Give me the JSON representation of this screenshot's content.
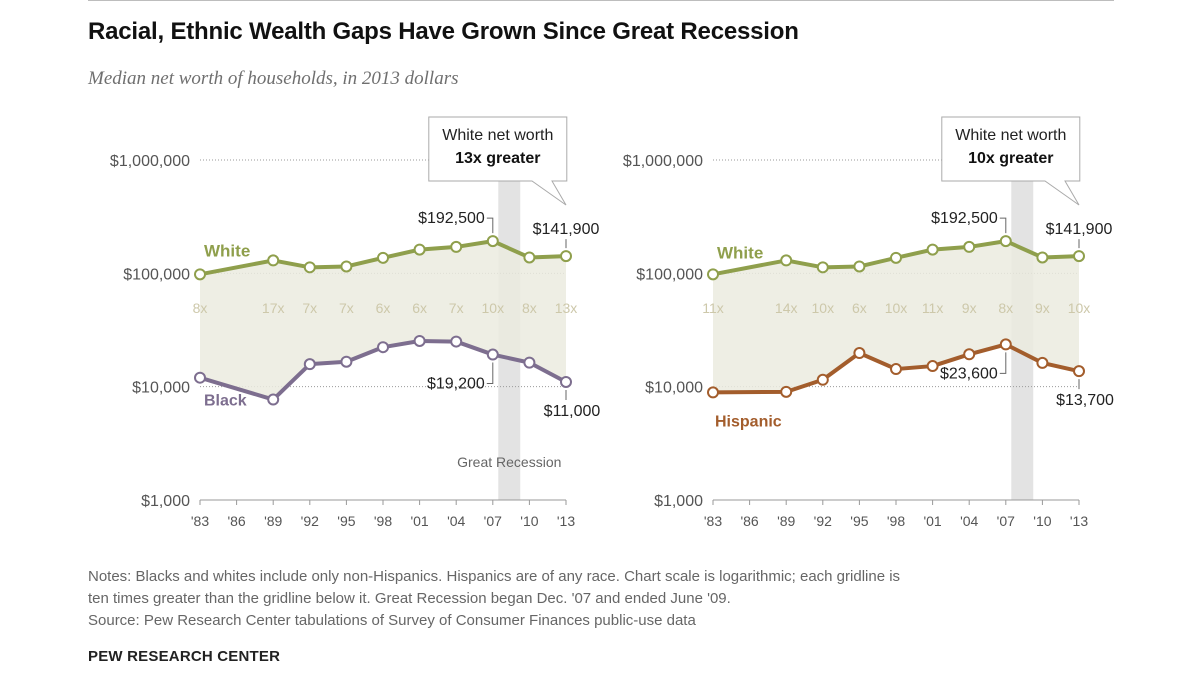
{
  "header": {
    "title": "Racial, Ethnic Wealth Gaps Have Grown Since Great Recession",
    "subtitle": "Median net worth of households, in 2013 dollars"
  },
  "colors": {
    "white_series": "#8f9f4c",
    "black_series": "#7d6e8f",
    "hispanic_series": "#a35d2c",
    "ratio_text": "#cdc8aa",
    "gap_fill": "#ebebdf",
    "recession_band": "#e3e3e3"
  },
  "chart_data": [
    {
      "type": "line",
      "scale": "log",
      "x": [
        "'83",
        "'86",
        "'89",
        "'92",
        "'95",
        "'98",
        "'01",
        "'04",
        "'07",
        "'10",
        "'13"
      ],
      "y_ticks": [
        "$1,000",
        "$10,000",
        "$100,000",
        "$1,000,000"
      ],
      "ylim": [
        1000,
        1000000
      ],
      "series": [
        {
          "name": "White",
          "x": [
            "'83",
            "'89",
            "'92",
            "'95",
            "'98",
            "'01",
            "'04",
            "'07",
            "'10",
            "'13"
          ],
          "values": [
            98000,
            130000,
            113000,
            115000,
            137000,
            162000,
            171000,
            192500,
            138000,
            141900
          ]
        },
        {
          "name": "Black",
          "x": [
            "'83",
            "'89",
            "'92",
            "'95",
            "'98",
            "'01",
            "'04",
            "'07",
            "'10",
            "'13"
          ],
          "values": [
            12000,
            7700,
            15800,
            16600,
            22300,
            25300,
            25000,
            19200,
            16300,
            11000
          ]
        }
      ],
      "ratios": [
        {
          "x": "'83",
          "label": "8x"
        },
        {
          "x": "'89",
          "label": "17x"
        },
        {
          "x": "'92",
          "label": "7x"
        },
        {
          "x": "'95",
          "label": "7x"
        },
        {
          "x": "'98",
          "label": "6x"
        },
        {
          "x": "'01",
          "label": "6x"
        },
        {
          "x": "'04",
          "label": "7x"
        },
        {
          "x": "'07",
          "label": "10x"
        },
        {
          "x": "'10",
          "label": "8x"
        },
        {
          "x": "'13",
          "label": "13x"
        }
      ],
      "annotations": {
        "white_2007": "$192,500",
        "white_2013": "$141,900",
        "minority_2007": "$19,200",
        "minority_2013": "$11,000",
        "callout_line1": "White net worth",
        "callout_line2": "13x greater",
        "recession_label": "Great Recession"
      }
    },
    {
      "type": "line",
      "scale": "log",
      "x": [
        "'83",
        "'86",
        "'89",
        "'92",
        "'95",
        "'98",
        "'01",
        "'04",
        "'07",
        "'10",
        "'13"
      ],
      "y_ticks": [
        "$1,000",
        "$10,000",
        "$100,000",
        "$1,000,000"
      ],
      "ylim": [
        1000,
        1000000
      ],
      "series": [
        {
          "name": "White",
          "x": [
            "'83",
            "'89",
            "'92",
            "'95",
            "'98",
            "'01",
            "'04",
            "'07",
            "'10",
            "'13"
          ],
          "values": [
            98000,
            130000,
            113000,
            115000,
            137000,
            162000,
            171000,
            192500,
            138000,
            141900
          ]
        },
        {
          "name": "Hispanic",
          "x": [
            "'83",
            "'89",
            "'92",
            "'95",
            "'98",
            "'01",
            "'04",
            "'07",
            "'10",
            "'13"
          ],
          "values": [
            8900,
            9000,
            11500,
            19800,
            14300,
            15200,
            19300,
            23600,
            16200,
            13700
          ]
        }
      ],
      "ratios": [
        {
          "x": "'83",
          "label": "11x"
        },
        {
          "x": "'89",
          "label": "14x"
        },
        {
          "x": "'92",
          "label": "10x"
        },
        {
          "x": "'95",
          "label": "6x"
        },
        {
          "x": "'98",
          "label": "10x"
        },
        {
          "x": "'01",
          "label": "11x"
        },
        {
          "x": "'04",
          "label": "9x"
        },
        {
          "x": "'07",
          "label": "8x"
        },
        {
          "x": "'10",
          "label": "9x"
        },
        {
          "x": "'13",
          "label": "10x"
        }
      ],
      "annotations": {
        "white_2007": "$192,500",
        "white_2013": "$141,900",
        "minority_2007": "$23,600",
        "minority_2013": "$13,700",
        "callout_line1": "White net worth",
        "callout_line2": "10x greater",
        "recession_label": ""
      }
    }
  ],
  "notes": {
    "line1": "Notes: Blacks and whites include only non-Hispanics. Hispanics are of any race. Chart scale is logarithmic; each gridline is",
    "line2": "ten times greater than the gridline below it. Great Recession began Dec. '07 and ended June '09.",
    "source": "Source: Pew Research Center tabulations of Survey of Consumer Finances public-use data"
  },
  "brand": "PEW RESEARCH CENTER"
}
